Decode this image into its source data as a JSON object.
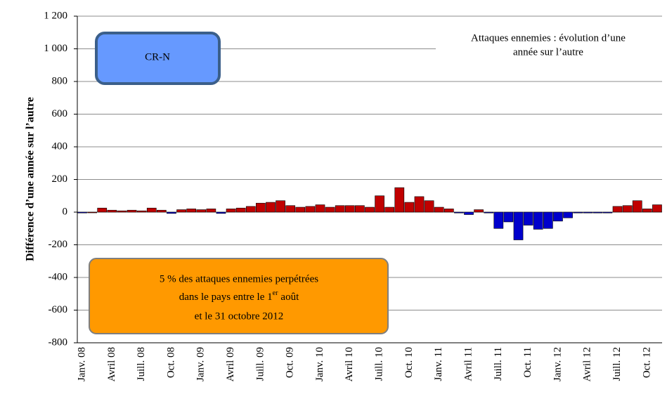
{
  "chart_data": {
    "type": "bar",
    "title": [
      "Attaques ennemies : évolution d’une",
      "année sur l’autre"
    ],
    "box_label": "CR-N",
    "note": {
      "line1": "5 % des attaques ennemies perpétrées",
      "line2": "dans le pays entre le 1",
      "sup": "er",
      "line2_end": "août",
      "line3": "et le 31 octobre 2012"
    },
    "ylabel": "Différence d’une année sur l’autre",
    "categories": [
      "Janv. 08",
      null,
      null,
      "Avril 08",
      null,
      null,
      "Juill. 08",
      null,
      null,
      "Oct. 08",
      null,
      null,
      "Janv. 09",
      null,
      null,
      "Avril 09",
      null,
      null,
      "Juill. 09",
      null,
      null,
      "Oct. 09",
      null,
      null,
      "Janv. 10",
      null,
      null,
      "Avril 10",
      null,
      null,
      "Juill. 10",
      null,
      null,
      "Oct. 10",
      null,
      null,
      "Janv. 11",
      null,
      null,
      "Avril 11",
      null,
      null,
      "Juill. 11",
      null,
      null,
      "Oct. 11",
      null,
      null,
      "Janv. 12",
      null,
      null,
      "Avril 12",
      null,
      null,
      "Juill. 12",
      null,
      null,
      "Oct. 12",
      null
    ],
    "values": [
      -5,
      0,
      25,
      12,
      8,
      12,
      8,
      25,
      12,
      -8,
      15,
      20,
      15,
      20,
      -8,
      20,
      25,
      35,
      55,
      60,
      70,
      40,
      30,
      35,
      45,
      30,
      40,
      40,
      40,
      30,
      100,
      30,
      150,
      60,
      95,
      70,
      30,
      20,
      -5,
      -15,
      15,
      -5,
      -100,
      -60,
      -170,
      -80,
      -105,
      -100,
      -55,
      -35,
      -5,
      -5,
      -5,
      -5,
      35,
      40,
      70,
      20,
      45
    ],
    "color": "#c00000",
    "negative_color": "#0000cc",
    "ylim": [
      -800,
      1200
    ],
    "yticks": [
      -800,
      -600,
      -400,
      -200,
      0,
      200,
      400,
      600,
      800,
      {
        "value": 1000,
        "label": "1 000"
      },
      {
        "value": 1200,
        "label": "1 200"
      }
    ],
    "grid": true
  }
}
